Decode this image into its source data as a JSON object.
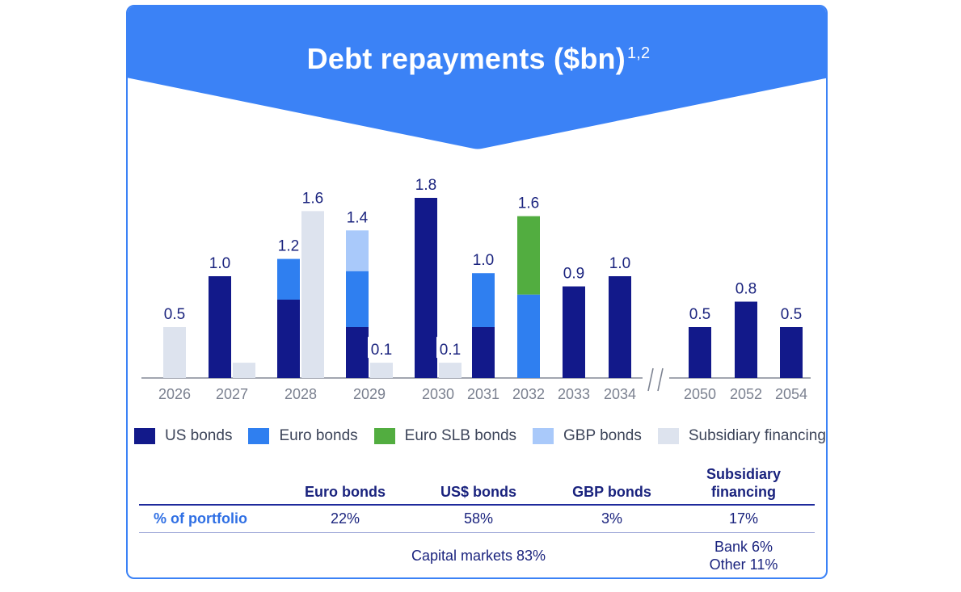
{
  "title": "Debt repayments ($bn)",
  "title_superscript": "1,2",
  "colors": {
    "us_bonds": "#12198a",
    "euro_bonds": "#2f7ff0",
    "euro_slb_bonds": "#52ad40",
    "gbp_bonds": "#a9c9fa",
    "subsidiary_financing": "#dde3ee",
    "banner": "#3b82f6",
    "label": "#1a237e",
    "tick": "#7b8190"
  },
  "chart_data": {
    "type": "bar",
    "stacked": true,
    "ylabel": "",
    "xlabel": "",
    "axis_break_between": [
      "2034",
      "2050"
    ],
    "groups": [
      {
        "year": "2026",
        "bars": [
          {
            "segments": [
              {
                "series": "Subsidiary financing",
                "value": 0.5
              }
            ],
            "label": "0.5"
          }
        ]
      },
      {
        "year": "2027",
        "bars": [
          {
            "segments": [
              {
                "series": "US bonds",
                "value": 1.0
              }
            ],
            "label": "1.0"
          },
          {
            "segments": [
              {
                "series": "Subsidiary financing",
                "value": 0.15
              }
            ],
            "label": ""
          }
        ]
      },
      {
        "year": "2028",
        "bars": [
          {
            "segments": [
              {
                "series": "US bonds",
                "value": 0.77
              },
              {
                "series": "Euro bonds",
                "value": 0.4
              }
            ],
            "label": "1.2"
          },
          {
            "segments": [
              {
                "series": "Subsidiary financing",
                "value": 1.64
              }
            ],
            "label": "1.6"
          }
        ]
      },
      {
        "year": "2029",
        "bars": [
          {
            "segments": [
              {
                "series": "US bonds",
                "value": 0.5
              },
              {
                "series": "Euro bonds",
                "value": 0.55
              },
              {
                "series": "GBP bonds",
                "value": 0.4
              }
            ],
            "label": "1.4"
          },
          {
            "segments": [
              {
                "series": "Subsidiary financing",
                "value": 0.15
              }
            ],
            "label": "0.1"
          }
        ]
      },
      {
        "year": "2030",
        "bars": [
          {
            "segments": [
              {
                "series": "US bonds",
                "value": 1.77
              }
            ],
            "label": "1.8"
          },
          {
            "segments": [
              {
                "series": "Subsidiary financing",
                "value": 0.15
              }
            ],
            "label": "0.1"
          }
        ]
      },
      {
        "year": "2031",
        "bars": [
          {
            "segments": [
              {
                "series": "US bonds",
                "value": 0.5
              },
              {
                "series": "Euro bonds",
                "value": 0.53
              }
            ],
            "label": "1.0"
          }
        ]
      },
      {
        "year": "2032",
        "bars": [
          {
            "segments": [
              {
                "series": "Euro bonds",
                "value": 0.82
              },
              {
                "series": "Euro SLB bonds",
                "value": 0.77
              }
            ],
            "label": "1.6"
          }
        ]
      },
      {
        "year": "2033",
        "bars": [
          {
            "segments": [
              {
                "series": "US bonds",
                "value": 0.9
              }
            ],
            "label": "0.9"
          }
        ]
      },
      {
        "year": "2034",
        "bars": [
          {
            "segments": [
              {
                "series": "US bonds",
                "value": 1.0
              }
            ],
            "label": "1.0"
          }
        ]
      },
      {
        "year": "2050",
        "bars": [
          {
            "segments": [
              {
                "series": "US bonds",
                "value": 0.5
              }
            ],
            "label": "0.5"
          }
        ]
      },
      {
        "year": "2052",
        "bars": [
          {
            "segments": [
              {
                "series": "US bonds",
                "value": 0.75
              }
            ],
            "label": "0.8"
          }
        ]
      },
      {
        "year": "2054",
        "bars": [
          {
            "segments": [
              {
                "series": "US bonds",
                "value": 0.5
              }
            ],
            "label": "0.5"
          }
        ]
      }
    ],
    "legend": [
      "US bonds",
      "Euro bonds",
      "Euro SLB bonds",
      "GBP bonds",
      "Subsidiary financing"
    ],
    "legend_position": "bottom"
  },
  "table": {
    "headers": [
      "",
      "Euro bonds",
      "US$ bonds",
      "GBP bonds",
      "Subsidiary financing"
    ],
    "header_sub_line1": "Subsidiary",
    "header_sub_line2": "financing",
    "pct_row_label": "% of portfolio",
    "pct_values": [
      "22%",
      "58%",
      "3%",
      "17%"
    ],
    "capital_markets": "Capital markets 83%",
    "bank": "Bank 6%",
    "other": "Other 11%"
  }
}
